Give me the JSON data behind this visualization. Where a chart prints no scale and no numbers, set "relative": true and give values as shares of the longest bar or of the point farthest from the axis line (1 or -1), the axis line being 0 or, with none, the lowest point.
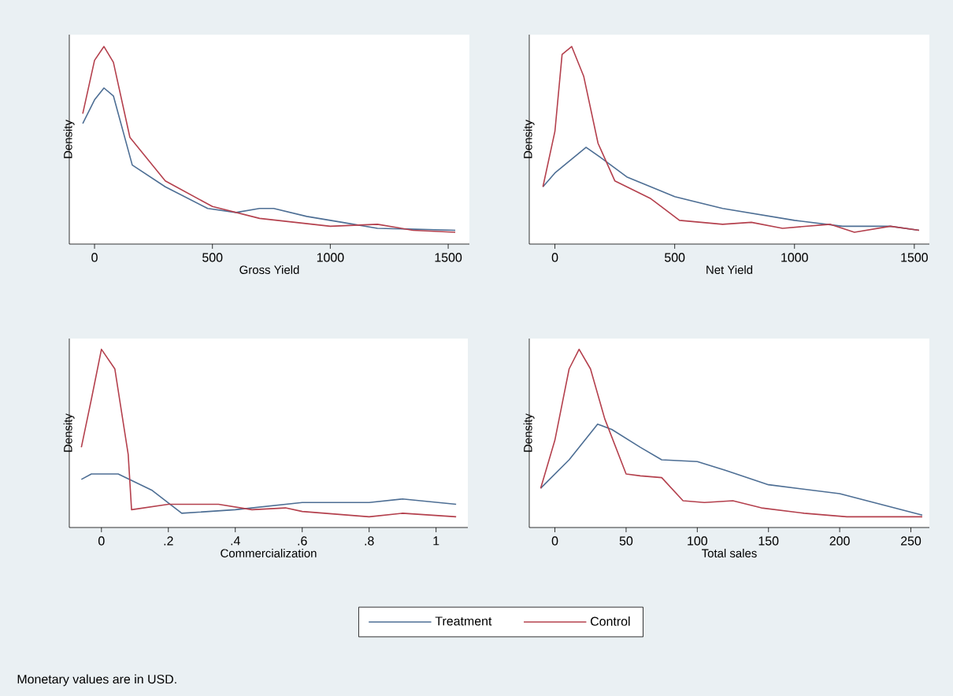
{
  "chart_data": [
    {
      "type": "line",
      "relative": true,
      "xlabel": "Gross Yield",
      "ylabel": "Density",
      "xlim": [
        -107,
        1590
      ],
      "xticks": [
        0,
        500,
        1000,
        1500
      ],
      "series": [
        {
          "color": "#4d6e94",
          "x": [
            -50,
            0,
            40,
            80,
            160,
            300,
            480,
            600,
            700,
            760,
            900,
            1050,
            1200,
            1530
          ],
          "values": [
            0.61,
            0.73,
            0.79,
            0.75,
            0.4,
            0.29,
            0.18,
            0.16,
            0.18,
            0.18,
            0.14,
            0.11,
            0.08,
            0.07
          ]
        },
        {
          "color": "#b4404d",
          "x": [
            -50,
            0,
            40,
            80,
            150,
            300,
            500,
            700,
            1000,
            1200,
            1350,
            1530
          ],
          "values": [
            0.66,
            0.93,
            1.0,
            0.92,
            0.54,
            0.32,
            0.19,
            0.13,
            0.09,
            0.1,
            0.07,
            0.06
          ]
        }
      ]
    },
    {
      "type": "line",
      "relative": true,
      "xlabel": "Net Yield",
      "ylabel": "Density",
      "xlim": [
        -107,
        1563
      ],
      "xticks": [
        0,
        500,
        1000,
        1500
      ],
      "series": [
        {
          "color": "#4d6e94",
          "x": [
            -50,
            0,
            130,
            200,
            300,
            500,
            700,
            1000,
            1200,
            1400,
            1520
          ],
          "values": [
            0.29,
            0.36,
            0.49,
            0.43,
            0.34,
            0.24,
            0.18,
            0.12,
            0.09,
            0.09,
            0.07
          ]
        },
        {
          "color": "#b4404d",
          "x": [
            -50,
            0,
            30,
            70,
            120,
            180,
            250,
            400,
            520,
            700,
            820,
            950,
            1150,
            1250,
            1400,
            1520
          ],
          "values": [
            0.29,
            0.57,
            0.96,
            1.0,
            0.85,
            0.51,
            0.32,
            0.23,
            0.12,
            0.1,
            0.11,
            0.08,
            0.1,
            0.06,
            0.09,
            0.07
          ]
        }
      ]
    },
    {
      "type": "line",
      "relative": true,
      "xlabel": "Commercialization",
      "ylabel": "Density",
      "xlim": [
        -0.096,
        1.095
      ],
      "xticks": [
        0,
        {
          "value": 0.2,
          "label": ".2"
        },
        {
          "value": 0.4,
          "label": ".4"
        },
        {
          "value": 0.6,
          "label": ".6"
        },
        {
          "value": 0.8,
          "label": ".8"
        },
        1
      ],
      "series": [
        {
          "color": "#4d6e94",
          "x": [
            -0.06,
            -0.03,
            0.05,
            0.15,
            0.24,
            0.4,
            0.6,
            0.8,
            0.9,
            1.06
          ],
          "values": [
            0.27,
            0.3,
            0.3,
            0.21,
            0.08,
            0.1,
            0.14,
            0.14,
            0.16,
            0.13
          ]
        },
        {
          "color": "#b4404d",
          "x": [
            -0.06,
            -0.03,
            0,
            0.04,
            0.08,
            0.09,
            0.2,
            0.35,
            0.45,
            0.55,
            0.6,
            0.8,
            0.9,
            1.06
          ],
          "values": [
            0.45,
            0.72,
            1.0,
            0.89,
            0.41,
            0.1,
            0.13,
            0.13,
            0.1,
            0.11,
            0.09,
            0.06,
            0.08,
            0.06
          ]
        }
      ]
    },
    {
      "type": "line",
      "relative": true,
      "xlabel": "Total sales",
      "ylabel": "Density",
      "xlim": [
        -18,
        263
      ],
      "xticks": [
        0,
        50,
        100,
        150,
        200,
        250
      ],
      "legend": "bottom",
      "annotations": [
        "Monetary values are in USD."
      ],
      "series": [
        {
          "name": "Treatment",
          "color": "#4d6e94",
          "x": [
            -10,
            10,
            30,
            40,
            60,
            75,
            100,
            120,
            150,
            200,
            258
          ],
          "values": [
            0.22,
            0.38,
            0.58,
            0.55,
            0.45,
            0.38,
            0.37,
            0.32,
            0.24,
            0.19,
            0.07
          ]
        },
        {
          "name": "Control",
          "color": "#b4404d",
          "x": [
            -10,
            0,
            10,
            17,
            25,
            35,
            50,
            60,
            75,
            90,
            105,
            125,
            145,
            175,
            205,
            225,
            258
          ],
          "values": [
            0.22,
            0.49,
            0.89,
            1.0,
            0.89,
            0.61,
            0.3,
            0.29,
            0.28,
            0.15,
            0.14,
            0.15,
            0.11,
            0.08,
            0.06,
            0.06,
            0.06
          ]
        }
      ]
    }
  ]
}
